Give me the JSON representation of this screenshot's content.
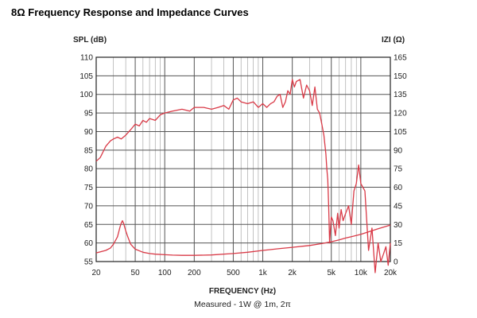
{
  "chart_data": {
    "type": "line",
    "title": "8Ω Frequency Response and Impedance Curves",
    "xlabel": "FREQUENCY (Hz)",
    "ylabel_left": "SPL (dB)",
    "ylabel_right": "IZI (Ω)",
    "caption": "Measured - 1W @ 1m, 2π",
    "x_scale": "log",
    "xlim": [
      20,
      20000
    ],
    "ylim_left": [
      55,
      110
    ],
    "ylim_right": [
      0,
      165
    ],
    "grid": true,
    "x_ticks": [
      20,
      50,
      100,
      200,
      500,
      1000,
      2000,
      5000,
      10000,
      20000
    ],
    "x_tick_labels": [
      "20",
      "50",
      "100",
      "200",
      "500",
      "1k",
      "2k",
      "5k",
      "10k",
      "20k"
    ],
    "y_left_ticks": [
      110,
      105,
      100,
      95,
      90,
      85,
      80,
      75,
      70,
      65,
      60,
      55
    ],
    "y_right_ticks": [
      165,
      150,
      135,
      120,
      105,
      90,
      75,
      60,
      45,
      30,
      15,
      0
    ],
    "colors": {
      "curve": "#d93a47",
      "grid": "#555555",
      "grid_minor": "#9a9a9a"
    },
    "series": [
      {
        "axis": "left",
        "x": [
          20,
          22,
          25,
          28,
          30,
          33,
          36,
          40,
          45,
          50,
          55,
          60,
          65,
          70,
          80,
          90,
          100,
          120,
          150,
          180,
          200,
          250,
          300,
          350,
          400,
          450,
          500,
          550,
          600,
          700,
          800,
          900,
          1000,
          1100,
          1200,
          1300,
          1400,
          1500,
          1600,
          1700,
          1800,
          1900,
          2000,
          2100,
          2200,
          2400,
          2600,
          2800,
          3000,
          3200,
          3400,
          3600,
          3800,
          4000,
          4200,
          4400,
          4500,
          4600,
          4700,
          4800,
          5000,
          5200,
          5500,
          5800,
          6000,
          6300,
          6600,
          7000,
          7500,
          8000,
          8500,
          9000,
          9500,
          10000,
          11000,
          12000,
          13000,
          14000,
          15000,
          16000,
          17000,
          18000,
          19000,
          20000
        ],
        "values": [
          82,
          83,
          86,
          87.5,
          88,
          88.5,
          88,
          89,
          90.5,
          92,
          91.5,
          93,
          92.5,
          93.5,
          93,
          94.5,
          95,
          95.5,
          96,
          95.5,
          96.5,
          96.5,
          96,
          96.5,
          97,
          96,
          98.5,
          99,
          98,
          97.5,
          98,
          96.5,
          97.5,
          96.5,
          97.5,
          98,
          99.5,
          100,
          96.5,
          98,
          101,
          100,
          104,
          102,
          103.5,
          104,
          99,
          102.5,
          101,
          97,
          102,
          96,
          95,
          92,
          89,
          84,
          80,
          77,
          70,
          60,
          67,
          66,
          62,
          68,
          64,
          69,
          66,
          68,
          70,
          65,
          74,
          76,
          81,
          76,
          74,
          58,
          64,
          52,
          60,
          55,
          57,
          59,
          54,
          60
        ]
      },
      {
        "axis": "right",
        "x": [
          20,
          25,
          28,
          30,
          33,
          35,
          36,
          37,
          38,
          40,
          42,
          45,
          50,
          60,
          70,
          80,
          100,
          120,
          150,
          200,
          300,
          500,
          700,
          1000,
          1500,
          2000,
          3000,
          4000,
          5000,
          6000,
          7000,
          8000,
          10000,
          12000,
          15000,
          20000
        ],
        "values": [
          7,
          9,
          11,
          14,
          20,
          28,
          31,
          33,
          31,
          25,
          20,
          14,
          10,
          7.5,
          6.5,
          6,
          5.5,
          5.2,
          5,
          5,
          5.3,
          6.5,
          7.5,
          9,
          10.5,
          11.5,
          13,
          14.5,
          16,
          17.5,
          19,
          20,
          22,
          24,
          26.5,
          29.5
        ]
      }
    ]
  }
}
